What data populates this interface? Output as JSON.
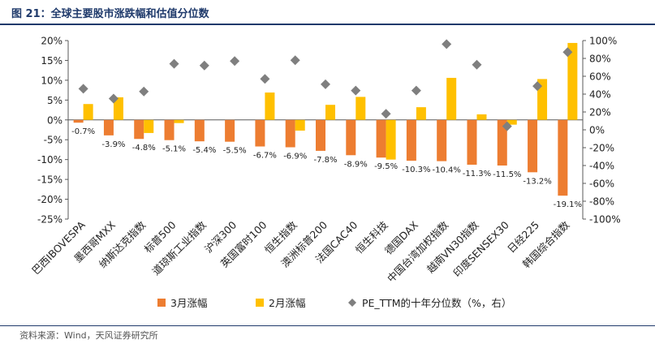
{
  "header": {
    "title": "图 21：全球主要股市涨跌幅和估值分位数"
  },
  "footer": {
    "source": "资料来源：Wind，天风证券研究所"
  },
  "colors": {
    "march": "#ED7D31",
    "feb": "#FFC000",
    "pe": "#7F7F7F",
    "axis": "#595959",
    "title": "#1F3A6B"
  },
  "chart_data": {
    "type": "bar",
    "title": "全球主要股市涨跌幅和估值分位数",
    "categories": [
      "巴西IBOVESPA",
      "墨西哥MXX",
      "纳斯达克指数",
      "标普500",
      "道琼斯工业指数",
      "沪深300",
      "英国富时100",
      "恒生指数",
      "澳洲标普200",
      "法国CAC40",
      "恒生科技",
      "德国DAX",
      "中国台湾加权指数",
      "越南VN30指数",
      "印度SENSEX30",
      "日经225",
      "韩国综合指数"
    ],
    "series": [
      {
        "name": "3月涨幅",
        "axis": "left",
        "kind": "bar",
        "values": [
          -0.7,
          -3.9,
          -4.8,
          -5.1,
          -5.4,
          -5.5,
          -6.7,
          -6.9,
          -7.8,
          -8.9,
          -9.5,
          -10.3,
          -10.4,
          -11.3,
          -11.5,
          -13.2,
          -19.1
        ],
        "labels": [
          "-0.7%",
          "-3.9%",
          "-4.8%",
          "-5.1%",
          "-5.4%",
          "-5.5%",
          "-6.7%",
          "-6.9%",
          "-7.8%",
          "-8.9%",
          "-9.5%",
          "-10.3%",
          "-10.4%",
          "-11.3%",
          "-11.5%",
          "-13.2%",
          "-19.1%"
        ]
      },
      {
        "name": "2月涨幅",
        "axis": "left",
        "kind": "bar",
        "values": [
          4.0,
          5.7,
          -3.3,
          -0.8,
          0.0,
          0.0,
          6.9,
          -2.7,
          3.8,
          5.8,
          -10.0,
          3.2,
          10.6,
          1.4,
          -1.2,
          10.3,
          19.4
        ]
      },
      {
        "name": "PE_TTM的十年分位数（%，右）",
        "axis": "right",
        "kind": "scatter",
        "values": [
          46,
          35,
          43,
          74,
          72,
          77,
          57,
          78,
          51,
          44,
          18,
          44,
          96,
          73,
          4,
          49,
          87
        ]
      }
    ],
    "y_left": {
      "min": -25,
      "max": 20,
      "step": 5,
      "ticks": [
        "20%",
        "15%",
        "10%",
        "5%",
        "0%",
        "-5%",
        "-10%",
        "-15%",
        "-20%",
        "-25%"
      ]
    },
    "y_right": {
      "min": -100,
      "max": 100,
      "step": 20,
      "ticks": [
        "100%",
        "80%",
        "60%",
        "40%",
        "20%",
        "0%",
        "-20%",
        "-40%",
        "-60%",
        "-80%",
        "-100%"
      ]
    },
    "legend": {
      "position": "bottom",
      "items": [
        "3月涨幅",
        "2月涨幅",
        "PE_TTM的十年分位数（%，右）"
      ]
    }
  }
}
